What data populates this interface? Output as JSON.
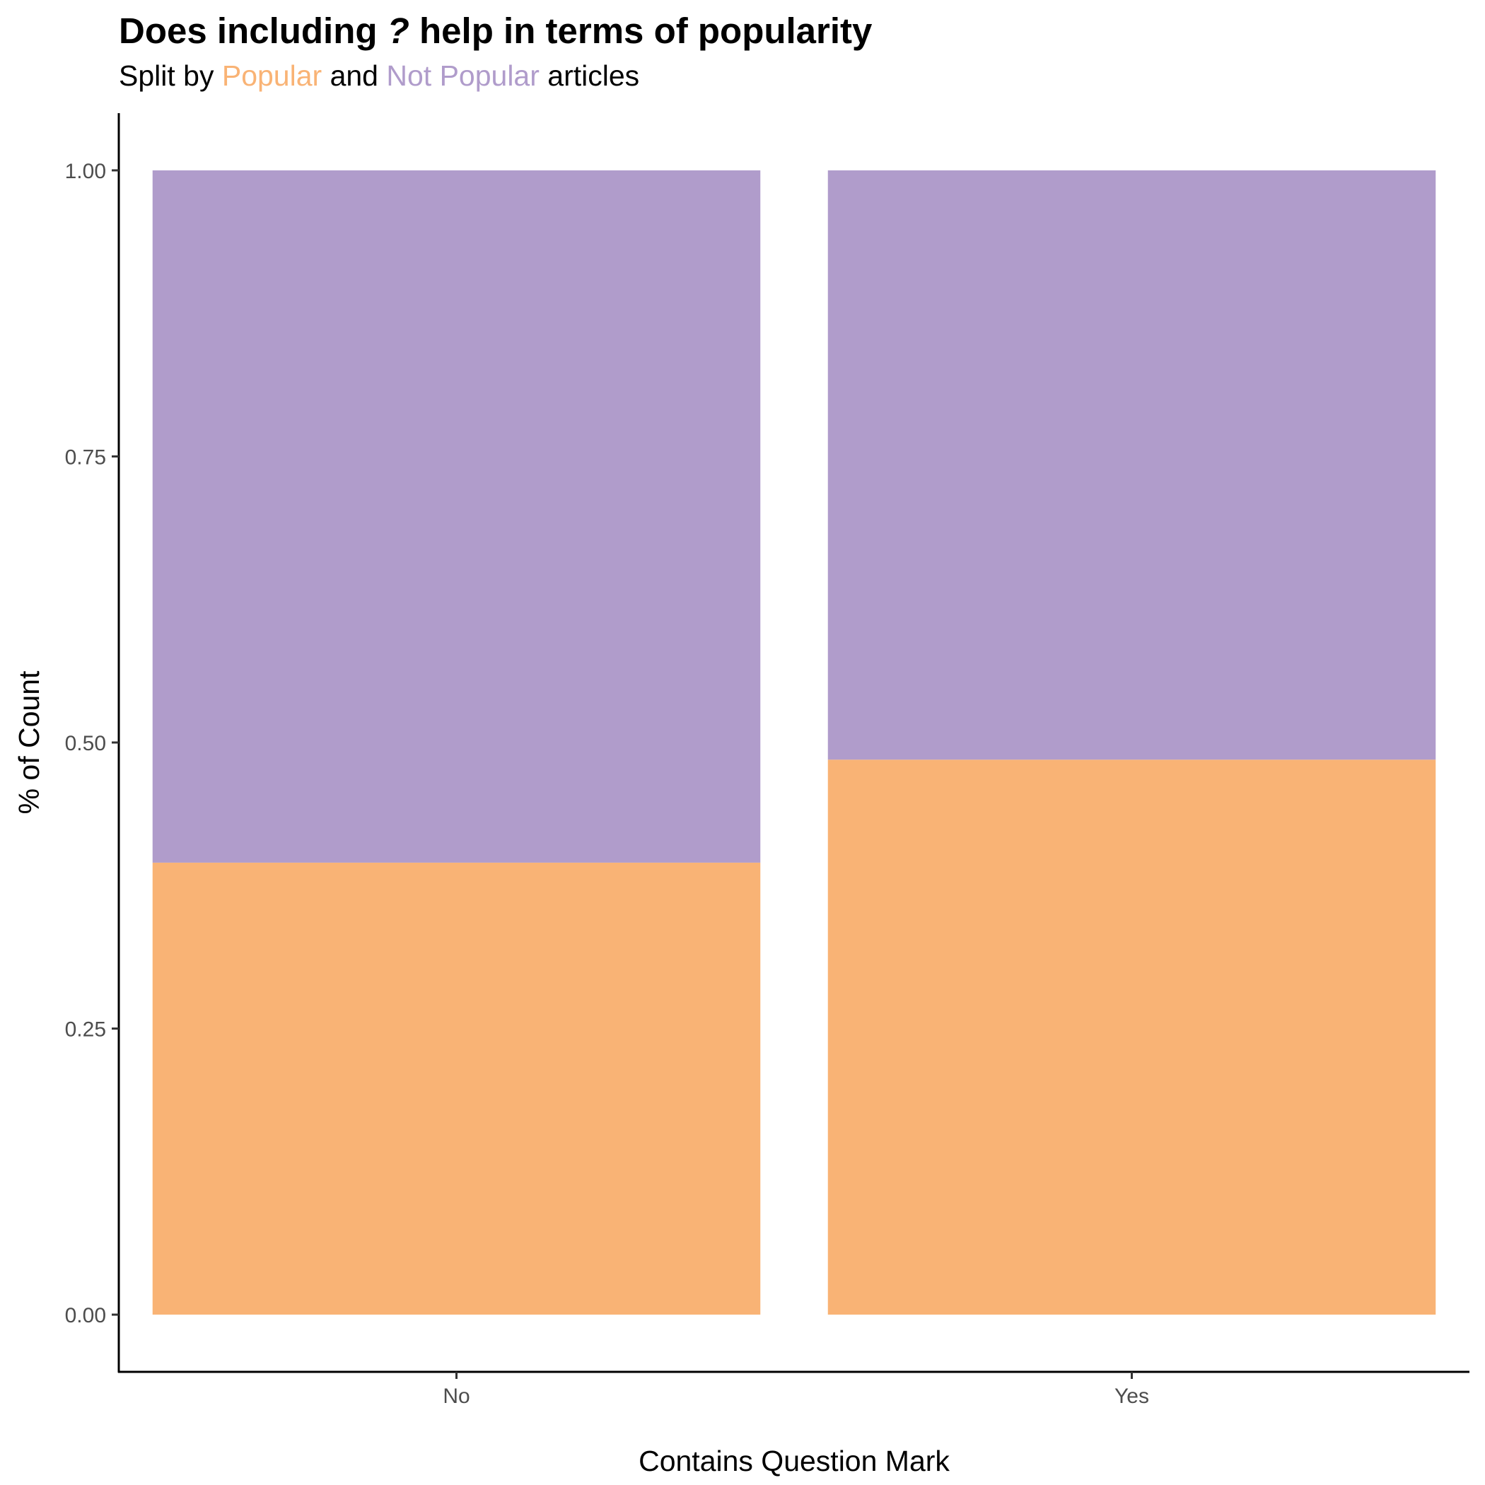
{
  "title": {
    "before": "Does including ",
    "mark": "?",
    "after": " help in terms of popularity"
  },
  "subtitle": {
    "prefix": "Split by ",
    "popular": "Popular",
    "middle": " and ",
    "not_popular": "Not Popular",
    "suffix": " articles"
  },
  "colors": {
    "popular": "#F9B375",
    "not_popular": "#B09CCB"
  },
  "chart_data": {
    "type": "bar",
    "stacked": true,
    "categories": [
      "No",
      "Yes"
    ],
    "series": [
      {
        "name": "Popular",
        "values": [
          0.395,
          0.485
        ],
        "color": "#F9B375"
      },
      {
        "name": "Not Popular",
        "values": [
          0.605,
          0.515
        ],
        "color": "#B09CCB"
      }
    ],
    "xlabel": "Contains Question Mark",
    "ylabel": "% of Count",
    "ylim": [
      -0.05,
      1.05
    ],
    "yticks": [
      0,
      0.25,
      0.5,
      0.75,
      1.0
    ],
    "ytick_labels": [
      "0.00",
      "0.25",
      "0.50",
      "0.75",
      "1.00"
    ],
    "grid": false,
    "legend": "none"
  }
}
